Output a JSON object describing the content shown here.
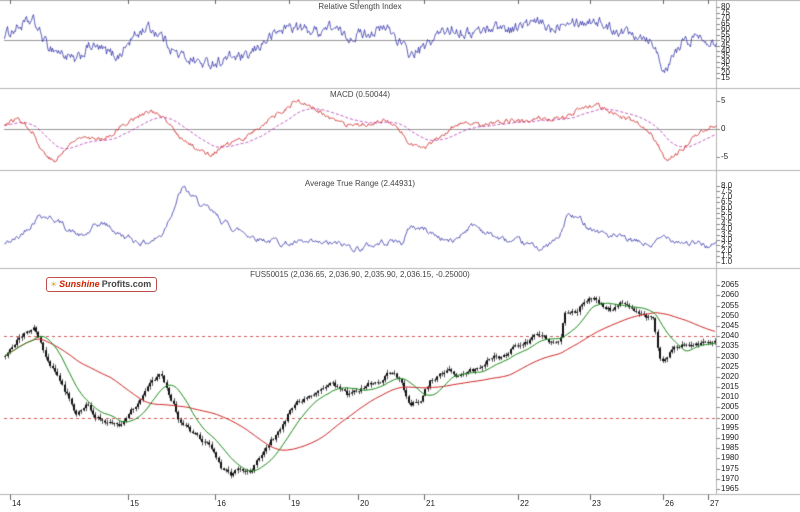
{
  "logo": {
    "sun": "☀",
    "brand_red": "Sunshine",
    "brand_dark": "Profits.com"
  },
  "xaxis": {
    "ticks": [
      {
        "label": "14",
        "pos": 0.008
      },
      {
        "label": "15",
        "pos": 0.174
      },
      {
        "label": "16",
        "pos": 0.296
      },
      {
        "label": "19",
        "pos": 0.4
      },
      {
        "label": "20",
        "pos": 0.497
      },
      {
        "label": "21",
        "pos": 0.59
      },
      {
        "label": "22",
        "pos": 0.722
      },
      {
        "label": "23",
        "pos": 0.823
      },
      {
        "label": "26",
        "pos": 0.926
      },
      {
        "label": "27",
        "pos": 0.989
      }
    ]
  },
  "chart_data": [
    {
      "id": "rsi",
      "type": "line",
      "title": "Relative Strength Index",
      "line_color": "#3333aa",
      "ylim": [
        7,
        85
      ],
      "yticks": [
        "80",
        "75",
        "70",
        "65",
        "60",
        "55",
        "50",
        "45",
        "40",
        "35",
        "30",
        "25",
        "20",
        "15"
      ],
      "midline": 50,
      "anchors": [
        [
          0,
          55
        ],
        [
          0.02,
          62
        ],
        [
          0.04,
          68
        ],
        [
          0.06,
          45
        ],
        [
          0.08,
          38
        ],
        [
          0.1,
          30
        ],
        [
          0.12,
          45
        ],
        [
          0.14,
          40
        ],
        [
          0.16,
          35
        ],
        [
          0.18,
          52
        ],
        [
          0.2,
          62
        ],
        [
          0.22,
          55
        ],
        [
          0.24,
          38
        ],
        [
          0.26,
          33
        ],
        [
          0.28,
          28
        ],
        [
          0.3,
          30
        ],
        [
          0.32,
          35
        ],
        [
          0.34,
          33
        ],
        [
          0.36,
          46
        ],
        [
          0.38,
          56
        ],
        [
          0.4,
          63
        ],
        [
          0.42,
          60
        ],
        [
          0.44,
          58
        ],
        [
          0.46,
          63
        ],
        [
          0.48,
          52
        ],
        [
          0.5,
          56
        ],
        [
          0.52,
          58
        ],
        [
          0.54,
          61
        ],
        [
          0.56,
          44
        ],
        [
          0.57,
          36
        ],
        [
          0.59,
          43
        ],
        [
          0.61,
          56
        ],
        [
          0.63,
          61
        ],
        [
          0.65,
          56
        ],
        [
          0.67,
          59
        ],
        [
          0.69,
          63
        ],
        [
          0.71,
          60
        ],
        [
          0.73,
          64
        ],
        [
          0.75,
          66
        ],
        [
          0.77,
          60
        ],
        [
          0.79,
          71
        ],
        [
          0.81,
          66
        ],
        [
          0.83,
          69
        ],
        [
          0.85,
          61
        ],
        [
          0.87,
          58
        ],
        [
          0.89,
          56
        ],
        [
          0.91,
          50
        ],
        [
          0.92,
          32
        ],
        [
          0.93,
          20
        ],
        [
          0.94,
          36
        ],
        [
          0.95,
          46
        ],
        [
          0.97,
          53
        ],
        [
          0.99,
          51
        ],
        [
          1,
          49
        ]
      ]
    },
    {
      "id": "macd",
      "type": "line",
      "title": "MACD (0.50044)",
      "macd_color": "#cc2222",
      "signal_color": "#aa22aa",
      "last_value": 0.50044,
      "ylim": [
        -7.2,
        7.2
      ],
      "yticks": [
        "5",
        "0",
        "-5"
      ],
      "midline": 0,
      "anchors": [
        [
          0,
          0.8
        ],
        [
          0.02,
          2
        ],
        [
          0.04,
          -0.5
        ],
        [
          0.05,
          -3.5
        ],
        [
          0.07,
          -6
        ],
        [
          0.09,
          -3
        ],
        [
          0.11,
          -1
        ],
        [
          0.13,
          -2
        ],
        [
          0.15,
          -1
        ],
        [
          0.17,
          1
        ],
        [
          0.19,
          2.5
        ],
        [
          0.21,
          3.2
        ],
        [
          0.23,
          1
        ],
        [
          0.25,
          -2
        ],
        [
          0.27,
          -3.5
        ],
        [
          0.29,
          -4.6
        ],
        [
          0.31,
          -3
        ],
        [
          0.33,
          -2
        ],
        [
          0.35,
          -0.5
        ],
        [
          0.37,
          1.5
        ],
        [
          0.39,
          3
        ],
        [
          0.41,
          5.2
        ],
        [
          0.43,
          4
        ],
        [
          0.45,
          2.5
        ],
        [
          0.47,
          1
        ],
        [
          0.49,
          0.4
        ],
        [
          0.51,
          1
        ],
        [
          0.53,
          1.6
        ],
        [
          0.55,
          0.5
        ],
        [
          0.57,
          -2.6
        ],
        [
          0.59,
          -3.6
        ],
        [
          0.61,
          -1.5
        ],
        [
          0.63,
          0.5
        ],
        [
          0.65,
          1
        ],
        [
          0.67,
          0.6
        ],
        [
          0.69,
          1.1
        ],
        [
          0.71,
          1.6
        ],
        [
          0.73,
          1.5
        ],
        [
          0.75,
          2.1
        ],
        [
          0.77,
          1.6
        ],
        [
          0.79,
          2.2
        ],
        [
          0.81,
          3.6
        ],
        [
          0.83,
          4.6
        ],
        [
          0.85,
          3
        ],
        [
          0.87,
          2
        ],
        [
          0.89,
          1
        ],
        [
          0.91,
          -1.2
        ],
        [
          0.93,
          -5.6
        ],
        [
          0.95,
          -4
        ],
        [
          0.97,
          -1.2
        ],
        [
          0.99,
          0.4
        ],
        [
          1,
          0.5
        ]
      ]
    },
    {
      "id": "atr",
      "type": "line",
      "title": "Average True Range (2.44931)",
      "line_color": "#3333aa",
      "last_value": 2.44931,
      "ylim": [
        0.5,
        9.4
      ],
      "yticks": [
        "8.0",
        "7.5",
        "7.0",
        "6.5",
        "6.0",
        "5.5",
        "5.0",
        "4.5",
        "4.0",
        "3.5",
        "3.0",
        "2.5",
        "2.0",
        "1.5",
        "1.0"
      ],
      "anchors": [
        [
          0,
          2.6
        ],
        [
          0.02,
          3.2
        ],
        [
          0.04,
          4.8
        ],
        [
          0.05,
          5.5
        ],
        [
          0.07,
          5
        ],
        [
          0.09,
          4
        ],
        [
          0.11,
          3.2
        ],
        [
          0.13,
          4.3
        ],
        [
          0.14,
          4.5
        ],
        [
          0.16,
          3.6
        ],
        [
          0.18,
          3
        ],
        [
          0.2,
          2.8
        ],
        [
          0.22,
          3.4
        ],
        [
          0.24,
          6.5
        ],
        [
          0.25,
          7.8
        ],
        [
          0.26,
          7.2
        ],
        [
          0.28,
          6
        ],
        [
          0.3,
          5
        ],
        [
          0.32,
          4.2
        ],
        [
          0.34,
          3.6
        ],
        [
          0.36,
          3.2
        ],
        [
          0.38,
          2.9
        ],
        [
          0.4,
          2.7
        ],
        [
          0.42,
          2.6
        ],
        [
          0.44,
          2.5
        ],
        [
          0.46,
          2.6
        ],
        [
          0.48,
          2.4
        ],
        [
          0.5,
          2.3
        ],
        [
          0.52,
          2.6
        ],
        [
          0.54,
          3
        ],
        [
          0.56,
          2.8
        ],
        [
          0.57,
          4.3
        ],
        [
          0.59,
          4
        ],
        [
          0.61,
          3.3
        ],
        [
          0.63,
          2.8
        ],
        [
          0.65,
          4.2
        ],
        [
          0.66,
          4.4
        ],
        [
          0.68,
          3.6
        ],
        [
          0.7,
          3
        ],
        [
          0.72,
          2.6
        ],
        [
          0.74,
          2.4
        ],
        [
          0.76,
          2.3
        ],
        [
          0.78,
          3.2
        ],
        [
          0.79,
          5.3
        ],
        [
          0.81,
          4.8
        ],
        [
          0.83,
          4
        ],
        [
          0.85,
          3.4
        ],
        [
          0.87,
          3
        ],
        [
          0.89,
          2.7
        ],
        [
          0.91,
          2.5
        ],
        [
          0.93,
          3.4
        ],
        [
          0.95,
          3
        ],
        [
          0.97,
          2.6
        ],
        [
          0.99,
          2.45
        ],
        [
          1,
          2.45
        ]
      ]
    },
    {
      "id": "price",
      "type": "candlestick",
      "symbol": "FUS50015",
      "title": "FUS50015 (2,036.65, 2,036.90, 2,035.90, 2,036.15, -0.25000)",
      "ohlc_last": {
        "open": "2,036.65",
        "high": "2,036.90",
        "low": "2,035.90",
        "close": "2,036.15",
        "change": "-0.25000"
      },
      "candle_color": "#111111",
      "ma_fast_color": "#1a8a1a",
      "ma_slow_color": "#cc2222",
      "hlines": [
        2040,
        2000
      ],
      "hline_color": "#cc3333",
      "ylim": [
        1963,
        2073
      ],
      "yticks": [
        "2065",
        "2060",
        "2055",
        "2050",
        "2045",
        "2040",
        "2035",
        "2030",
        "2025",
        "2020",
        "2015",
        "2010",
        "2005",
        "2000",
        "1995",
        "1990",
        "1985",
        "1980",
        "1975",
        "1970",
        "1965"
      ],
      "anchors": [
        [
          0.001,
          2031
        ],
        [
          0.015,
          2037
        ],
        [
          0.029,
          2041
        ],
        [
          0.041,
          2046
        ],
        [
          0.058,
          2030
        ],
        [
          0.079,
          2017
        ],
        [
          0.1,
          2002
        ],
        [
          0.114,
          2008
        ],
        [
          0.128,
          2000
        ],
        [
          0.149,
          1998
        ],
        [
          0.163,
          1996
        ],
        [
          0.184,
          2006
        ],
        [
          0.205,
          2018
        ],
        [
          0.219,
          2022
        ],
        [
          0.233,
          2010
        ],
        [
          0.247,
          1998
        ],
        [
          0.261,
          1994
        ],
        [
          0.275,
          1990
        ],
        [
          0.289,
          1985
        ],
        [
          0.303,
          1975
        ],
        [
          0.317,
          1972
        ],
        [
          0.331,
          1976
        ],
        [
          0.345,
          1973
        ],
        [
          0.359,
          1980
        ],
        [
          0.374,
          1988
        ],
        [
          0.388,
          1994
        ],
        [
          0.402,
          2004
        ],
        [
          0.416,
          2008
        ],
        [
          0.43,
          2012
        ],
        [
          0.444,
          2014
        ],
        [
          0.458,
          2019
        ],
        [
          0.472,
          2015
        ],
        [
          0.486,
          2011
        ],
        [
          0.5,
          2014
        ],
        [
          0.514,
          2017
        ],
        [
          0.528,
          2019
        ],
        [
          0.542,
          2022
        ],
        [
          0.556,
          2019
        ],
        [
          0.57,
          2006
        ],
        [
          0.584,
          2009
        ],
        [
          0.598,
          2018
        ],
        [
          0.612,
          2021
        ],
        [
          0.626,
          2023
        ],
        [
          0.64,
          2020
        ],
        [
          0.654,
          2022
        ],
        [
          0.668,
          2024
        ],
        [
          0.682,
          2028
        ],
        [
          0.697,
          2030
        ],
        [
          0.711,
          2033
        ],
        [
          0.725,
          2035
        ],
        [
          0.739,
          2038
        ],
        [
          0.753,
          2040
        ],
        [
          0.767,
          2038
        ],
        [
          0.781,
          2036
        ],
        [
          0.788,
          2052
        ],
        [
          0.802,
          2052
        ],
        [
          0.816,
          2057
        ],
        [
          0.83,
          2060
        ],
        [
          0.844,
          2055
        ],
        [
          0.858,
          2053
        ],
        [
          0.872,
          2056
        ],
        [
          0.886,
          2052
        ],
        [
          0.9,
          2050
        ],
        [
          0.914,
          2048
        ],
        [
          0.921,
          2030
        ],
        [
          0.928,
          2026
        ],
        [
          0.938,
          2032
        ],
        [
          0.949,
          2035
        ],
        [
          0.963,
          2037
        ],
        [
          0.977,
          2036
        ],
        [
          0.991,
          2036.15
        ],
        [
          1,
          2036.15
        ]
      ]
    }
  ]
}
